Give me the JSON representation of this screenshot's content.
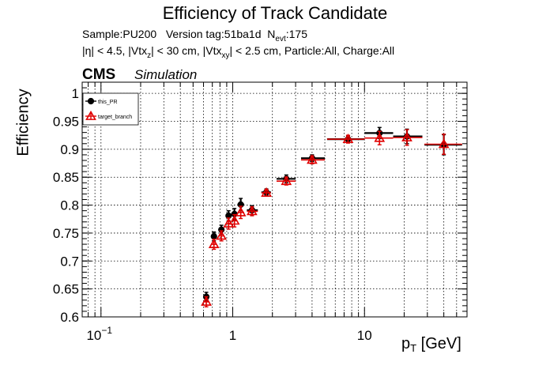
{
  "chart_data": {
    "type": "scatter",
    "title": "Efficiency of Track Candidate",
    "info_line1": {
      "sample": "Sample:PU200",
      "version": "Version tag:51ba1d",
      "n_label": "N",
      "n_sub": "evt",
      "n_value": ":175"
    },
    "info_line2": {
      "eta": "|η| < 4.5, |Vtx",
      "vtx_z_sub": "z",
      "mid": "| < 30 cm, |Vtx",
      "vtx_xy_sub": "xy",
      "rest": "| < 2.5 cm, Particle:All, Charge:All"
    },
    "experiment": "CMS",
    "status": "Simulation",
    "xlabel": {
      "main": "p",
      "sub": "T",
      "unit": " [GeV]"
    },
    "ylabel": "Efficiency",
    "xscale": "log",
    "xlim": [
      0.072,
      60
    ],
    "ylim": [
      0.6,
      1.02
    ],
    "grid": true,
    "x_ticks": [
      {
        "value": 0.1,
        "base": "10",
        "exp": "−1"
      },
      {
        "value": 1,
        "label": "1"
      },
      {
        "value": 10,
        "label": "10"
      }
    ],
    "y_ticks": [
      {
        "value": 0.6,
        "label": "0.6"
      },
      {
        "value": 0.65,
        "label": "0.65"
      },
      {
        "value": 0.7,
        "label": "0.7"
      },
      {
        "value": 0.75,
        "label": "0.75"
      },
      {
        "value": 0.8,
        "label": "0.8"
      },
      {
        "value": 0.85,
        "label": "0.85"
      },
      {
        "value": 0.9,
        "label": "0.9"
      },
      {
        "value": 0.95,
        "label": "0.95"
      },
      {
        "value": 1,
        "label": "1"
      }
    ],
    "legend_position": "top-left",
    "series": [
      {
        "name": "this_PR",
        "color": "#000000",
        "marker": "filled-circle",
        "points": [
          {
            "x": 0.63,
            "xlo": 0.6,
            "xhi": 0.66,
            "y": 0.636,
            "err": 0.008
          },
          {
            "x": 0.72,
            "xlo": 0.69,
            "xhi": 0.75,
            "y": 0.744,
            "err": 0.008
          },
          {
            "x": 0.82,
            "xlo": 0.78,
            "xhi": 0.86,
            "y": 0.756,
            "err": 0.008
          },
          {
            "x": 0.93,
            "xlo": 0.89,
            "xhi": 0.98,
            "y": 0.781,
            "err": 0.009
          },
          {
            "x": 1.03,
            "xlo": 0.98,
            "xhi": 1.08,
            "y": 0.784,
            "err": 0.01
          },
          {
            "x": 1.15,
            "xlo": 1.09,
            "xhi": 1.22,
            "y": 0.801,
            "err": 0.011
          },
          {
            "x": 1.4,
            "xlo": 1.28,
            "xhi": 1.55,
            "y": 0.791,
            "err": 0.008
          },
          {
            "x": 1.8,
            "xlo": 1.65,
            "xhi": 1.95,
            "y": 0.823,
            "err": 0.006
          },
          {
            "x": 2.55,
            "xlo": 2.15,
            "xhi": 3.0,
            "y": 0.847,
            "err": 0.007
          },
          {
            "x": 4.0,
            "xlo": 3.3,
            "xhi": 5.0,
            "y": 0.884,
            "err": 0.006
          },
          {
            "x": 7.5,
            "xlo": 5.2,
            "xhi": 10.0,
            "y": 0.918,
            "err": 0.006
          },
          {
            "x": 13.0,
            "xlo": 10.0,
            "xhi": 16.5,
            "y": 0.929,
            "err": 0.01
          },
          {
            "x": 21.0,
            "xlo": 16.5,
            "xhi": 27.5,
            "y": 0.923,
            "err": 0.013
          },
          {
            "x": 40.0,
            "xlo": 28.5,
            "xhi": 55.0,
            "y": 0.908,
            "err": 0.018
          }
        ]
      },
      {
        "name": "target_branch",
        "color": "#e00000",
        "marker": "open-triangle",
        "points": [
          {
            "x": 0.63,
            "xlo": 0.6,
            "xhi": 0.66,
            "y": 0.627,
            "err": 0.009
          },
          {
            "x": 0.72,
            "xlo": 0.69,
            "xhi": 0.75,
            "y": 0.73,
            "err": 0.009
          },
          {
            "x": 0.82,
            "xlo": 0.78,
            "xhi": 0.86,
            "y": 0.745,
            "err": 0.009
          },
          {
            "x": 0.93,
            "xlo": 0.89,
            "xhi": 0.98,
            "y": 0.767,
            "err": 0.01
          },
          {
            "x": 1.03,
            "xlo": 0.98,
            "xhi": 1.08,
            "y": 0.772,
            "err": 0.011
          },
          {
            "x": 1.15,
            "xlo": 1.09,
            "xhi": 1.22,
            "y": 0.787,
            "err": 0.011
          },
          {
            "x": 1.4,
            "xlo": 1.28,
            "xhi": 1.55,
            "y": 0.789,
            "err": 0.008
          },
          {
            "x": 1.8,
            "xlo": 1.65,
            "xhi": 1.95,
            "y": 0.822,
            "err": 0.006
          },
          {
            "x": 2.55,
            "xlo": 2.15,
            "xhi": 3.0,
            "y": 0.843,
            "err": 0.007
          },
          {
            "x": 4.0,
            "xlo": 3.3,
            "xhi": 5.0,
            "y": 0.881,
            "err": 0.007
          },
          {
            "x": 7.5,
            "xlo": 5.2,
            "xhi": 10.0,
            "y": 0.918,
            "err": 0.007
          },
          {
            "x": 13.0,
            "xlo": 10.0,
            "xhi": 16.5,
            "y": 0.92,
            "err": 0.012
          },
          {
            "x": 21.0,
            "xlo": 16.5,
            "xhi": 27.5,
            "y": 0.921,
            "err": 0.014
          },
          {
            "x": 40.0,
            "xlo": 28.5,
            "xhi": 55.0,
            "y": 0.909,
            "err": 0.018
          }
        ]
      }
    ]
  }
}
